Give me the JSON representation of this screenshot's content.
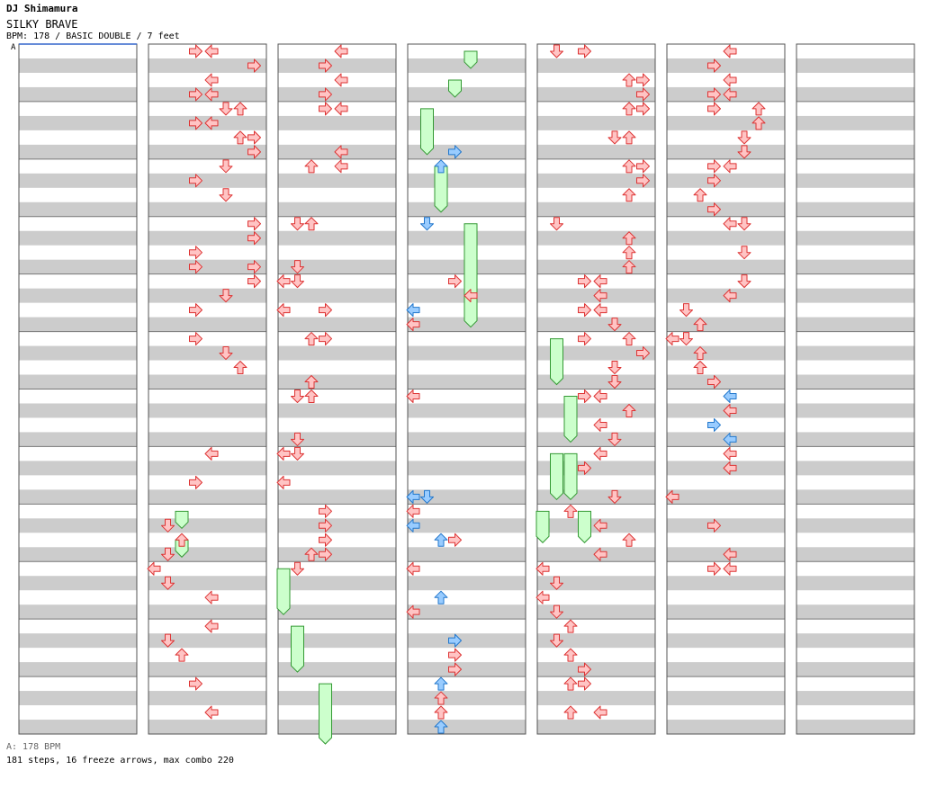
{
  "header": {
    "artist": "DJ Shimamura",
    "title": "SILKY BRAVE",
    "info": "BPM: 178 / BASIC DOUBLE / 7 feet",
    "bpm_marker": "A"
  },
  "footer": {
    "bpm_line": "A: 178 BPM",
    "stats_line": "181 steps, 16 freeze arrows, max combo 220"
  },
  "colors": {
    "arrow_red": "#ffc4c4",
    "arrow_red_stroke": "#dd3333",
    "arrow_blue": "#99ccff",
    "arrow_blue_stroke": "#2277cc",
    "freeze_fill": "#ccffcc",
    "freeze_stroke": "#339933",
    "stripe": "#cccccc"
  },
  "chart_data": {
    "type": "step_chart",
    "columns": 7,
    "measures_per_column": 12,
    "rows_per_measure": 4,
    "lanes": [
      "P1-left",
      "P1-down",
      "P1-up",
      "P1-right",
      "P2-left",
      "P2-down",
      "P2-up",
      "P2-right"
    ],
    "notes": [
      [
        1,
        0,
        3,
        "r"
      ],
      [
        1,
        0,
        4,
        "r"
      ],
      [
        1,
        1,
        7,
        "r"
      ],
      [
        1,
        2,
        4,
        "r"
      ],
      [
        1,
        3,
        3,
        "r"
      ],
      [
        1,
        3,
        4,
        "r"
      ],
      [
        1,
        4,
        5,
        "r"
      ],
      [
        1,
        4,
        6,
        "r"
      ],
      [
        1,
        5,
        3,
        "r"
      ],
      [
        1,
        5,
        4,
        "r"
      ],
      [
        1,
        6,
        6,
        "r"
      ],
      [
        1,
        6,
        7,
        "r"
      ],
      [
        1,
        7,
        7,
        "r"
      ],
      [
        1,
        8,
        5,
        "r"
      ],
      [
        1,
        9,
        3,
        "r"
      ],
      [
        1,
        10,
        5,
        "r"
      ],
      [
        1,
        12,
        7,
        "r"
      ],
      [
        1,
        13,
        7,
        "r"
      ],
      [
        1,
        14,
        3,
        "r"
      ],
      [
        1,
        15,
        3,
        "r"
      ],
      [
        1,
        15,
        7,
        "r"
      ],
      [
        1,
        16,
        7,
        "r"
      ],
      [
        1,
        17,
        5,
        "r"
      ],
      [
        1,
        18,
        3,
        "r"
      ],
      [
        1,
        20,
        3,
        "r"
      ],
      [
        1,
        21,
        5,
        "r"
      ],
      [
        1,
        22,
        6,
        "r"
      ],
      [
        1,
        28,
        4,
        "r"
      ],
      [
        1,
        30,
        3,
        "r"
      ],
      [
        1,
        33,
        1,
        "r"
      ],
      [
        1,
        34,
        2,
        "r"
      ],
      [
        1,
        35,
        1,
        "r"
      ],
      [
        1,
        36,
        0,
        "r"
      ],
      [
        1,
        37,
        1,
        "r"
      ],
      [
        1,
        38,
        4,
        "r"
      ],
      [
        1,
        40,
        4,
        "r"
      ],
      [
        1,
        41,
        1,
        "r"
      ],
      [
        1,
        42,
        2,
        "r"
      ],
      [
        1,
        44,
        3,
        "r"
      ],
      [
        1,
        46,
        4,
        "r"
      ],
      [
        2,
        0,
        4,
        "r"
      ],
      [
        2,
        1,
        3,
        "r"
      ],
      [
        2,
        2,
        4,
        "r"
      ],
      [
        2,
        3,
        3,
        "r"
      ],
      [
        2,
        4,
        3,
        "r"
      ],
      [
        2,
        4,
        4,
        "r"
      ],
      [
        2,
        7,
        4,
        "r"
      ],
      [
        2,
        8,
        2,
        "r"
      ],
      [
        2,
        8,
        4,
        "r"
      ],
      [
        2,
        12,
        2,
        "r"
      ],
      [
        2,
        12,
        1,
        "r"
      ],
      [
        2,
        15,
        1,
        "r"
      ],
      [
        2,
        16,
        1,
        "r"
      ],
      [
        2,
        16,
        0,
        "r"
      ],
      [
        2,
        18,
        0,
        "r"
      ],
      [
        2,
        18,
        3,
        "r"
      ],
      [
        2,
        20,
        2,
        "r"
      ],
      [
        2,
        20,
        3,
        "r"
      ],
      [
        2,
        23,
        2,
        "r"
      ],
      [
        2,
        24,
        1,
        "r"
      ],
      [
        2,
        24,
        2,
        "r"
      ],
      [
        2,
        27,
        1,
        "r"
      ],
      [
        2,
        28,
        1,
        "r"
      ],
      [
        2,
        28,
        0,
        "r"
      ],
      [
        2,
        30,
        0,
        "r"
      ],
      [
        2,
        32,
        3,
        "r"
      ],
      [
        2,
        33,
        3,
        "r"
      ],
      [
        2,
        34,
        3,
        "r"
      ],
      [
        2,
        35,
        2,
        "r"
      ],
      [
        2,
        35,
        3,
        "r"
      ],
      [
        2,
        36,
        1,
        "r"
      ],
      [
        3,
        7,
        3,
        "b"
      ],
      [
        3,
        8,
        2,
        "b"
      ],
      [
        3,
        12,
        1,
        "b"
      ],
      [
        3,
        16,
        3,
        "r"
      ],
      [
        3,
        17,
        4,
        "r"
      ],
      [
        3,
        18,
        0,
        "b"
      ],
      [
        3,
        19,
        0,
        "r"
      ],
      [
        3,
        24,
        0,
        "r"
      ],
      [
        3,
        31,
        0,
        "b"
      ],
      [
        3,
        31,
        1,
        "b"
      ],
      [
        3,
        32,
        0,
        "r"
      ],
      [
        3,
        33,
        0,
        "b"
      ],
      [
        3,
        34,
        2,
        "b"
      ],
      [
        3,
        34,
        3,
        "r"
      ],
      [
        3,
        36,
        0,
        "r"
      ],
      [
        3,
        38,
        2,
        "b"
      ],
      [
        3,
        39,
        0,
        "r"
      ],
      [
        3,
        41,
        3,
        "b"
      ],
      [
        3,
        42,
        3,
        "r"
      ],
      [
        3,
        43,
        3,
        "r"
      ],
      [
        3,
        44,
        2,
        "b"
      ],
      [
        3,
        45,
        2,
        "r"
      ],
      [
        3,
        46,
        2,
        "r"
      ],
      [
        3,
        47,
        2,
        "b"
      ],
      [
        4,
        0,
        1,
        "r"
      ],
      [
        4,
        0,
        3,
        "r"
      ],
      [
        4,
        2,
        6,
        "r"
      ],
      [
        4,
        2,
        7,
        "r"
      ],
      [
        4,
        3,
        7,
        "r"
      ],
      [
        4,
        4,
        6,
        "r"
      ],
      [
        4,
        4,
        7,
        "r"
      ],
      [
        4,
        6,
        5,
        "r"
      ],
      [
        4,
        6,
        6,
        "r"
      ],
      [
        4,
        8,
        6,
        "r"
      ],
      [
        4,
        8,
        7,
        "r"
      ],
      [
        4,
        9,
        7,
        "r"
      ],
      [
        4,
        10,
        6,
        "r"
      ],
      [
        4,
        12,
        1,
        "r"
      ],
      [
        4,
        13,
        6,
        "r"
      ],
      [
        4,
        14,
        6,
        "r"
      ],
      [
        4,
        15,
        6,
        "r"
      ],
      [
        4,
        16,
        4,
        "r"
      ],
      [
        4,
        16,
        3,
        "r"
      ],
      [
        4,
        17,
        4,
        "r"
      ],
      [
        4,
        18,
        4,
        "r"
      ],
      [
        4,
        18,
        3,
        "r"
      ],
      [
        4,
        19,
        5,
        "r"
      ],
      [
        4,
        20,
        3,
        "r"
      ],
      [
        4,
        20,
        6,
        "r"
      ],
      [
        4,
        21,
        7,
        "r"
      ],
      [
        4,
        22,
        5,
        "r"
      ],
      [
        4,
        23,
        5,
        "r"
      ],
      [
        4,
        24,
        4,
        "r"
      ],
      [
        4,
        24,
        3,
        "r"
      ],
      [
        4,
        25,
        6,
        "r"
      ],
      [
        4,
        26,
        4,
        "r"
      ],
      [
        4,
        27,
        5,
        "r"
      ],
      [
        4,
        28,
        4,
        "r"
      ],
      [
        4,
        29,
        3,
        "r"
      ],
      [
        4,
        31,
        5,
        "r"
      ],
      [
        4,
        32,
        2,
        "r"
      ],
      [
        4,
        33,
        4,
        "r"
      ],
      [
        4,
        34,
        6,
        "r"
      ],
      [
        4,
        35,
        4,
        "r"
      ],
      [
        4,
        36,
        0,
        "r"
      ],
      [
        4,
        37,
        1,
        "r"
      ],
      [
        4,
        38,
        0,
        "r"
      ],
      [
        4,
        39,
        1,
        "r"
      ],
      [
        4,
        40,
        2,
        "r"
      ],
      [
        4,
        41,
        1,
        "r"
      ],
      [
        4,
        42,
        2,
        "r"
      ],
      [
        4,
        43,
        3,
        "r"
      ],
      [
        4,
        44,
        2,
        "r"
      ],
      [
        4,
        44,
        3,
        "r"
      ],
      [
        4,
        46,
        2,
        "r"
      ],
      [
        4,
        46,
        4,
        "r"
      ],
      [
        5,
        0,
        4,
        "r"
      ],
      [
        5,
        1,
        3,
        "r"
      ],
      [
        5,
        2,
        4,
        "r"
      ],
      [
        5,
        3,
        3,
        "r"
      ],
      [
        5,
        3,
        4,
        "r"
      ],
      [
        5,
        4,
        3,
        "r"
      ],
      [
        5,
        4,
        6,
        "r"
      ],
      [
        5,
        5,
        6,
        "r"
      ],
      [
        5,
        6,
        5,
        "r"
      ],
      [
        5,
        7,
        5,
        "r"
      ],
      [
        5,
        8,
        4,
        "r"
      ],
      [
        5,
        8,
        3,
        "r"
      ],
      [
        5,
        9,
        3,
        "r"
      ],
      [
        5,
        10,
        2,
        "r"
      ],
      [
        5,
        11,
        3,
        "r"
      ],
      [
        5,
        12,
        4,
        "r"
      ],
      [
        5,
        12,
        5,
        "r"
      ],
      [
        5,
        14,
        5,
        "r"
      ],
      [
        5,
        16,
        5,
        "r"
      ],
      [
        5,
        17,
        4,
        "r"
      ],
      [
        5,
        18,
        1,
        "r"
      ],
      [
        5,
        19,
        2,
        "r"
      ],
      [
        5,
        20,
        0,
        "r"
      ],
      [
        5,
        20,
        1,
        "r"
      ],
      [
        5,
        21,
        2,
        "r"
      ],
      [
        5,
        22,
        2,
        "r"
      ],
      [
        5,
        23,
        3,
        "r"
      ],
      [
        5,
        24,
        4,
        "b"
      ],
      [
        5,
        25,
        4,
        "r"
      ],
      [
        5,
        26,
        3,
        "b"
      ],
      [
        5,
        27,
        4,
        "b"
      ],
      [
        5,
        28,
        4,
        "r"
      ],
      [
        5,
        29,
        4,
        "r"
      ],
      [
        5,
        31,
        0,
        "r"
      ],
      [
        5,
        33,
        3,
        "r"
      ],
      [
        5,
        35,
        4,
        "r"
      ],
      [
        5,
        36,
        3,
        "r"
      ],
      [
        5,
        36,
        4,
        "r"
      ]
    ],
    "freeze_arrows": [
      [
        1,
        32,
        2,
        33
      ],
      [
        1,
        34,
        2,
        35
      ],
      [
        2,
        36,
        0,
        39
      ],
      [
        2,
        40,
        1,
        43
      ],
      [
        2,
        44,
        3,
        48
      ],
      [
        3,
        0,
        4,
        1
      ],
      [
        3,
        2,
        3,
        3
      ],
      [
        3,
        4,
        1,
        7
      ],
      [
        3,
        8,
        2,
        11
      ],
      [
        3,
        12,
        4,
        19
      ],
      [
        4,
        20,
        1,
        23
      ],
      [
        4,
        24,
        2,
        27
      ],
      [
        4,
        28,
        1,
        31
      ],
      [
        4,
        28,
        2,
        31
      ],
      [
        4,
        32,
        0,
        34
      ],
      [
        4,
        32,
        3,
        34
      ]
    ]
  }
}
